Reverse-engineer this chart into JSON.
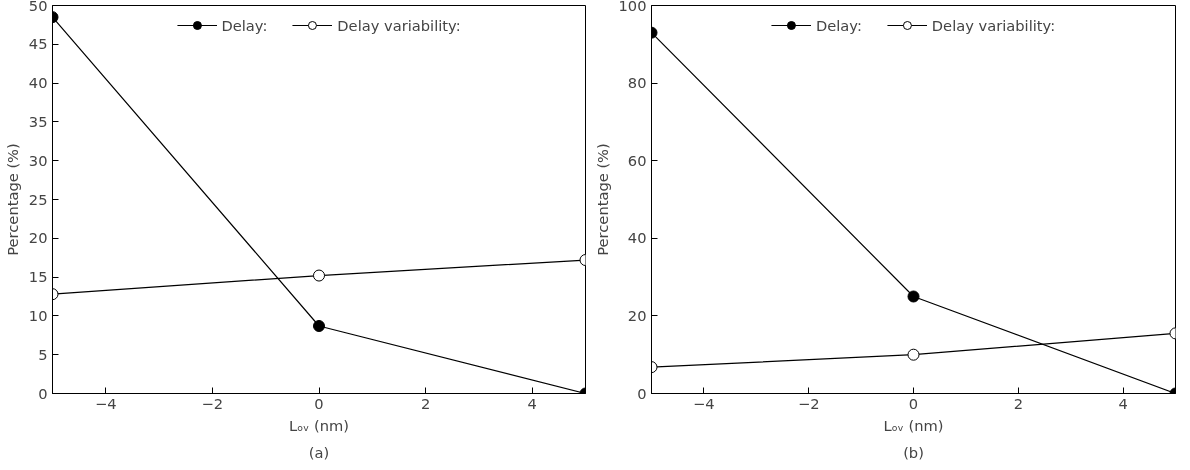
{
  "chart_data": [
    {
      "type": "line",
      "xlabel": "Lₒᵥ (nm)",
      "ylabel": "Percentage (%)",
      "x": [
        -5,
        0,
        5
      ],
      "xlim": [
        -5,
        5
      ],
      "xticks": [
        -4,
        -2,
        0,
        2,
        4
      ],
      "ylim": [
        0,
        50
      ],
      "yticks": [
        0,
        5,
        10,
        15,
        20,
        25,
        30,
        35,
        40,
        45,
        50
      ],
      "grid": false,
      "legend": "top",
      "marker": "circle",
      "line_style": "solid",
      "annotations": [
        "(a)"
      ],
      "series": [
        {
          "name": "Delay:",
          "color": "#000000",
          "values": [
            48.5,
            8.7,
            0
          ]
        },
        {
          "name": "Delay variability:",
          "color": "#000000",
          "values": [
            12.8,
            15.2,
            17.2
          ]
        }
      ]
    },
    {
      "type": "line",
      "xlabel": "Lₒᵥ (nm)",
      "ylabel": "Percentage (%)",
      "x": [
        -5,
        0,
        5
      ],
      "xlim": [
        -5,
        5
      ],
      "xticks": [
        -4,
        -2,
        0,
        2,
        4
      ],
      "ylim": [
        0,
        100
      ],
      "yticks": [
        0,
        20,
        40,
        60,
        80,
        100
      ],
      "grid": false,
      "legend": "top",
      "marker": "circle",
      "line_style": "solid",
      "annotations": [
        "(b)"
      ],
      "series": [
        {
          "name": "Delay:",
          "color": "#000000",
          "values": [
            93,
            25,
            0
          ]
        },
        {
          "name": "Delay variability:",
          "color": "#000000",
          "values": [
            6.8,
            10,
            15.5
          ]
        }
      ]
    }
  ]
}
